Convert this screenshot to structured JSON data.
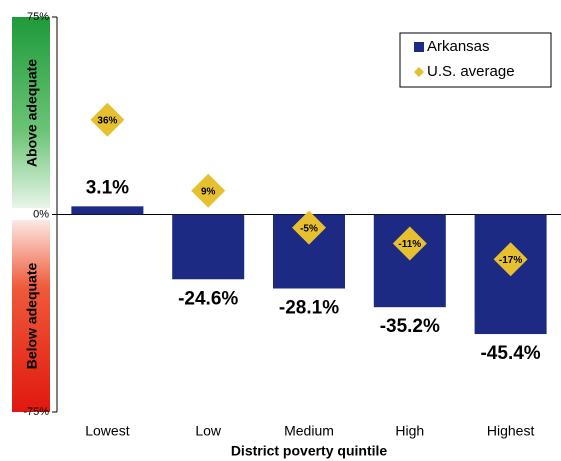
{
  "chart_data": {
    "type": "bar",
    "categories": [
      "Lowest",
      "Low",
      "Medium",
      "High",
      "Highest"
    ],
    "xlabel": "District poverty quintile",
    "band_labels": [
      "Above adequate",
      "Below adequate"
    ],
    "series": [
      {
        "name": "Arkansas",
        "color": "#1c2a84",
        "values": [
          3.1,
          -24.6,
          -28.1,
          -35.2,
          -45.4
        ],
        "value_labels": [
          "3.1%",
          "-24.6%",
          "-28.1%",
          "-35.2%",
          "-45.4%"
        ]
      },
      {
        "name": "U.S. average",
        "color": "#e6c02e",
        "marker": "diamond",
        "values": [
          36,
          9,
          -5,
          -11,
          -17
        ],
        "value_labels": [
          "36%",
          "9%",
          "-5%",
          "-11%",
          "-17%"
        ]
      }
    ],
    "ylim": [
      -75,
      75
    ],
    "yticks": [
      {
        "value": -75,
        "label": "-75%"
      },
      {
        "value": 0,
        "label": "0%"
      },
      {
        "value": 75,
        "label": "75%"
      }
    ],
    "grid": false,
    "legend": "upper-right"
  }
}
